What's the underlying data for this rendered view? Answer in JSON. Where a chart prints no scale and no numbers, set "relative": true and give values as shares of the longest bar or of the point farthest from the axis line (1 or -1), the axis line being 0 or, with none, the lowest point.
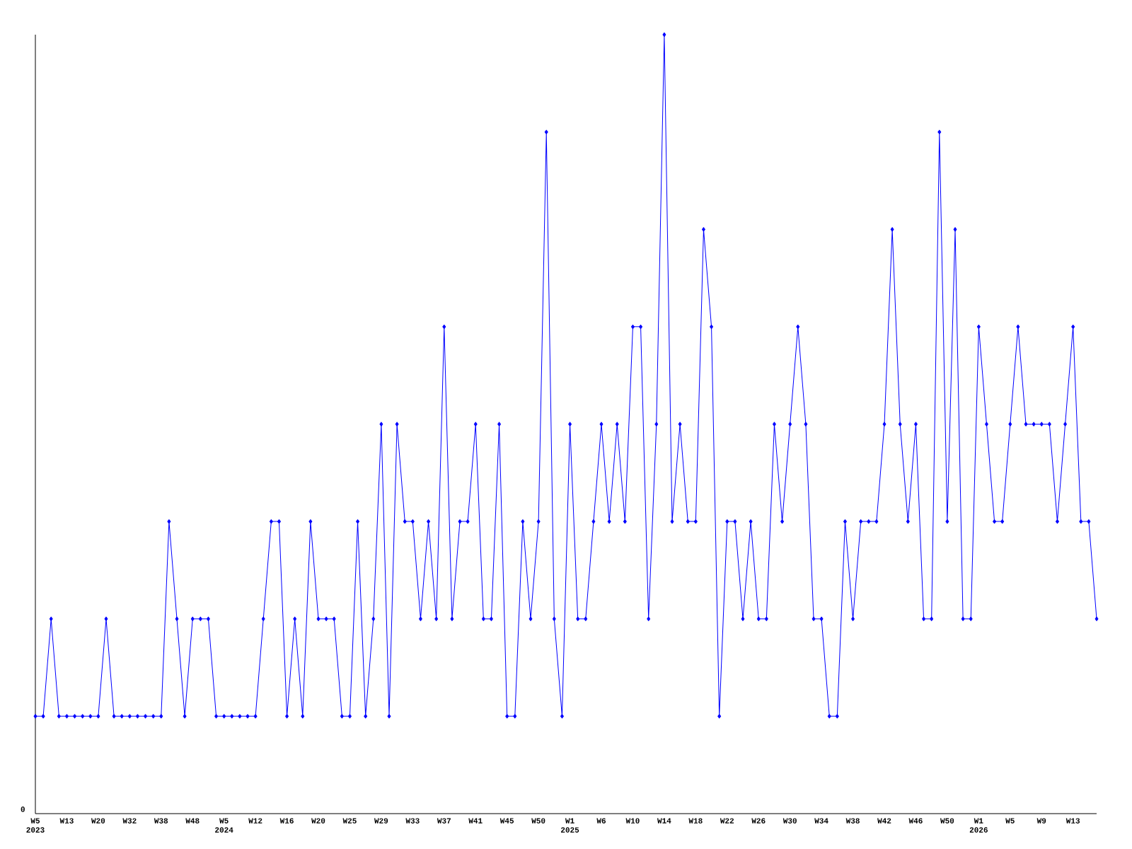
{
  "chart_data": {
    "type": "line",
    "relative": true,
    "color": "#0000ff",
    "marker": "diamond",
    "line_style": "solid",
    "annotations": [
      "0"
    ],
    "categories": [
      "W5 2023",
      null,
      null,
      null,
      "W13",
      null,
      null,
      null,
      "W20",
      null,
      null,
      null,
      "W32",
      null,
      null,
      null,
      "W38",
      null,
      null,
      null,
      "W48",
      null,
      null,
      null,
      "W5 2024",
      null,
      null,
      null,
      "W12",
      null,
      null,
      null,
      "W16",
      null,
      null,
      null,
      "W20",
      null,
      null,
      null,
      "W25",
      null,
      null,
      null,
      "W29",
      null,
      null,
      null,
      "W33",
      null,
      null,
      null,
      "W37",
      null,
      null,
      null,
      "W41",
      null,
      null,
      null,
      "W45",
      null,
      null,
      null,
      "W50",
      null,
      null,
      null,
      "W1 2025",
      null,
      null,
      null,
      "W6",
      null,
      null,
      null,
      "W10",
      null,
      null,
      null,
      "W14",
      null,
      null,
      null,
      "W18",
      null,
      null,
      null,
      "W22",
      null,
      null,
      null,
      "W26",
      null,
      null,
      null,
      "W30",
      null,
      null,
      null,
      "W34",
      null,
      null,
      null,
      "W38",
      null,
      null,
      null,
      "W42",
      null,
      null,
      null,
      "W46",
      null,
      null,
      null,
      "W50",
      null,
      null,
      null,
      "W1 2026",
      null,
      null,
      null,
      "W5",
      null,
      null,
      null,
      "W9",
      null,
      null,
      null,
      "W13",
      null,
      null,
      null
    ],
    "values": [
      0.125,
      0.125,
      0.25,
      0.125,
      0.125,
      0.125,
      0.125,
      0.125,
      0.125,
      0.25,
      0.125,
      0.125,
      0.125,
      0.125,
      0.125,
      0.125,
      0.125,
      0.375,
      0.25,
      0.125,
      0.25,
      0.25,
      0.25,
      0.125,
      0.125,
      0.125,
      0.125,
      0.125,
      0.125,
      0.25,
      0.375,
      0.375,
      0.125,
      0.25,
      0.125,
      0.375,
      0.25,
      0.25,
      0.25,
      0.125,
      0.125,
      0.375,
      0.125,
      0.25,
      0.5,
      0.125,
      0.5,
      0.375,
      0.375,
      0.25,
      0.375,
      0.25,
      0.625,
      0.25,
      0.375,
      0.375,
      0.5,
      0.25,
      0.25,
      0.5,
      0.125,
      0.125,
      0.375,
      0.25,
      0.375,
      0.875,
      0.25,
      0.125,
      0.5,
      0.25,
      0.25,
      0.375,
      0.5,
      0.375,
      0.5,
      0.375,
      0.625,
      0.625,
      0.25,
      0.5,
      1,
      0.375,
      0.5,
      0.375,
      0.375,
      0.75,
      0.625,
      0.125,
      0.375,
      0.375,
      0.25,
      0.375,
      0.25,
      0.25,
      0.5,
      0.375,
      0.5,
      0.625,
      0.5,
      0.25,
      0.25,
      0.125,
      0.125,
      0.375,
      0.25,
      0.375,
      0.375,
      0.375,
      0.5,
      0.75,
      0.5,
      0.375,
      0.5,
      0.25,
      0.25,
      0.875,
      0.375,
      0.75,
      0.25,
      0.25,
      0.625,
      0.5,
      0.375,
      0.375,
      0.5,
      0.625,
      0.5,
      0.5,
      0.5,
      0.5,
      0.375,
      0.5,
      0.625,
      0.375,
      0.375,
      0.25
    ]
  }
}
